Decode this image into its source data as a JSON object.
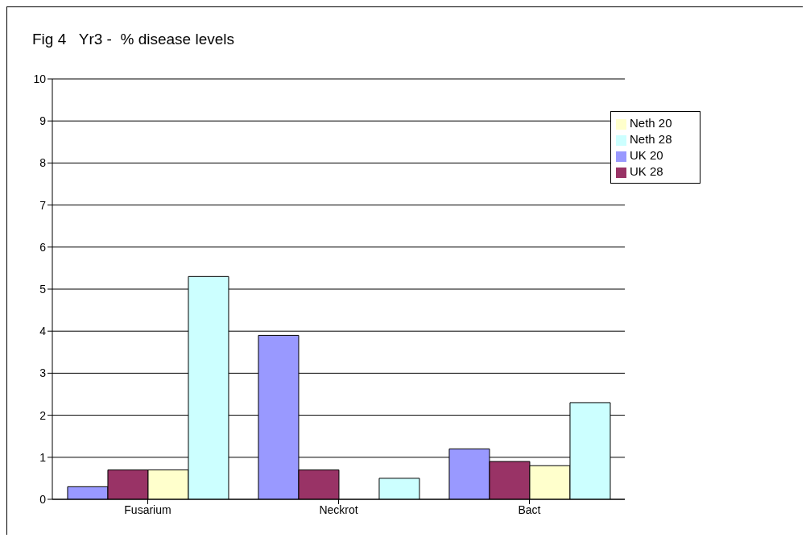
{
  "chart_data": {
    "type": "bar",
    "title": "Fig 4   Yr3 -  % disease levels",
    "categories": [
      "Fusarium",
      "Neckrot",
      "Bact"
    ],
    "series": [
      {
        "name": "UK 20",
        "color": "#9999ff",
        "values": [
          0.3,
          3.9,
          1.2
        ]
      },
      {
        "name": "UK 28",
        "color": "#993366",
        "values": [
          0.7,
          0.7,
          0.9
        ]
      },
      {
        "name": "Neth 20",
        "color": "#ffffcc",
        "values": [
          0.7,
          0,
          0.8
        ]
      },
      {
        "name": "Neth 28",
        "color": "#ccffff",
        "values": [
          5.3,
          0.5,
          2.3
        ]
      }
    ],
    "ylim": [
      0,
      10
    ],
    "yticks": [
      0,
      1,
      2,
      3,
      4,
      5,
      6,
      7,
      8,
      9,
      10
    ],
    "grid": "y",
    "legend": "top right"
  }
}
